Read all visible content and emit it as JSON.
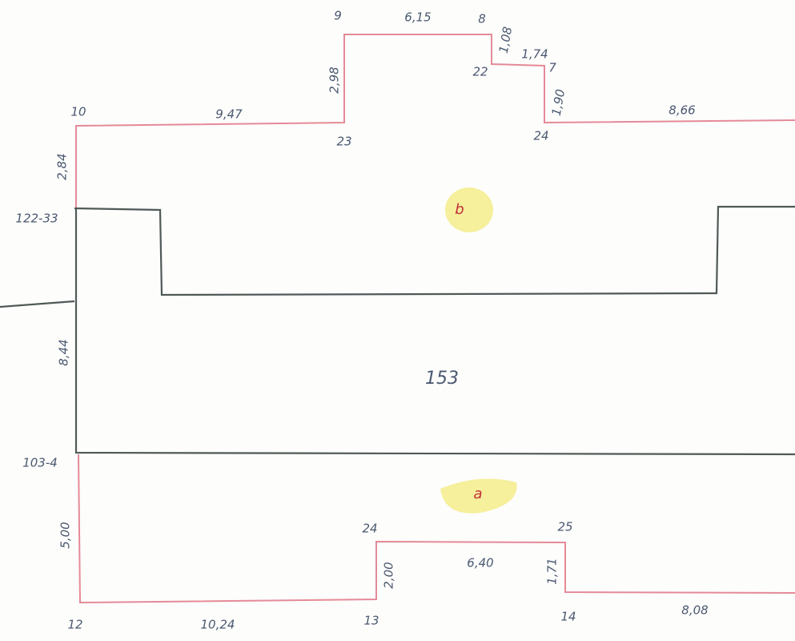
{
  "point_labels": [
    "9",
    "8",
    "7",
    "22",
    "10",
    "23",
    "24",
    "24",
    "25",
    "12",
    "13",
    "14"
  ],
  "measurements": [
    "6,15",
    "1,08",
    "1,74",
    "2,98",
    "9,47",
    "1,90",
    "8,66",
    "2,84",
    "8,44",
    "5,00",
    "6,40",
    "2,00",
    "1,71",
    "10,24",
    "8,08"
  ],
  "boundary_labels": [
    "122-33",
    "103-4"
  ],
  "parcel_number": "153",
  "sub_parcels": [
    "b",
    "a"
  ]
}
